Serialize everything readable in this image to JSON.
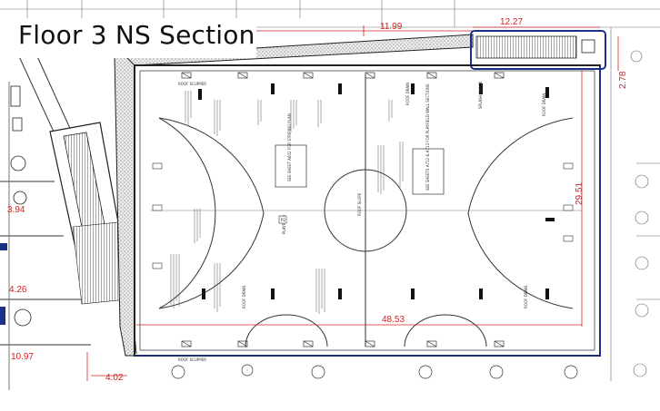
{
  "title": "Floor 3 NS Section",
  "dimensions": {
    "top_width": "11.99",
    "stair_width": "12.27",
    "stair_height": "2.78",
    "room_height": "29.51",
    "room_width": "48.53",
    "left_offset_1": "3.94",
    "left_offset_2": "4.26",
    "bottom_left_1": "10.97",
    "bottom_left_2": "4.02"
  },
  "labels": {
    "playfield": "PLAYFIELD",
    "playfield_tag": "P2",
    "roof_drain": "ROOF DRAIN",
    "splash_block": "SPLASH BLOCK",
    "sheet_ref_center": "SEE SHEET A602 FOR STRIPING PLAN",
    "sheet_ref_right": "SEE SHEETS A712 & A713 FOR PLAYFIELD WALL SECTIONS",
    "roof_slope": "ROOF SLOPE",
    "scupper": "ROOF SCUPPER"
  },
  "colors": {
    "linework": "#2a2a2a",
    "dimension": "#d42020",
    "accent_blue": "#1c2f8a",
    "hatch": "#555555"
  }
}
